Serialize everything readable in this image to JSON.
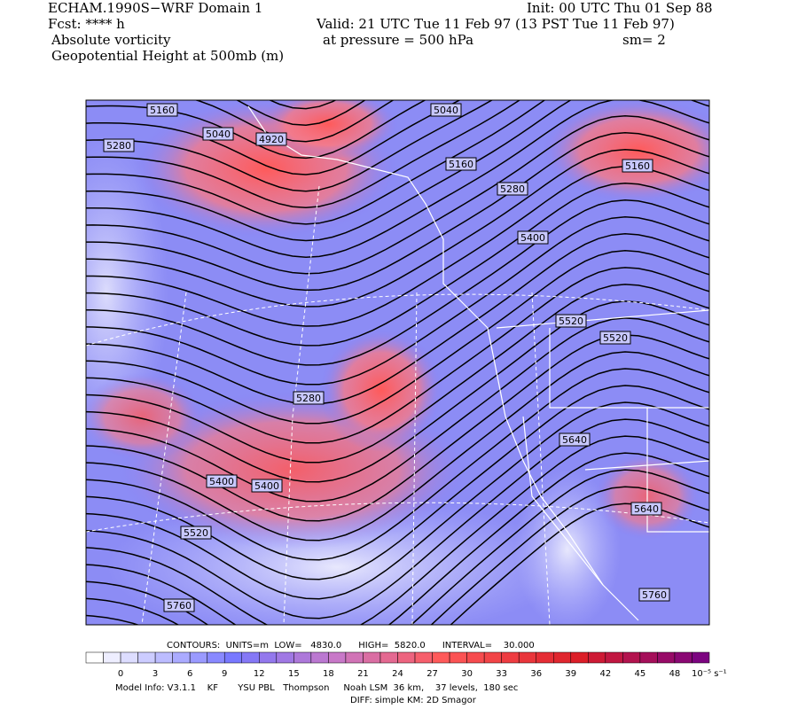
{
  "header": {
    "title": "ECHAM.1990S−WRF Domain 1",
    "init": "Init: 00 UTC Thu 01 Sep 88",
    "fcst": "Fcst: **** h",
    "valid": "Valid: 21 UTC Tue 11 Feb 97 (13 PST Tue 11 Feb 97)",
    "field1": "Absolute vorticity",
    "pressure": "at pressure =  500 hPa",
    "smooth": "sm= 2",
    "field2": "Geopotential Height at 500mb (m)"
  },
  "contour_labels": [
    "5160",
    "5040",
    "4920",
    "5280",
    "5040",
    "5160",
    "5280",
    "5400",
    "5160",
    "5520",
    "5520",
    "5280",
    "5400",
    "5400",
    "5640",
    "5520",
    "5640",
    "5760",
    "5760"
  ],
  "legend": {
    "contours": "CONTOURS:  UNITS=m  LOW=   4830.0      HIGH=  5820.0      INTERVAL=    30.000",
    "ticks": [
      "0",
      "3",
      "6",
      "9",
      "12",
      "15",
      "18",
      "21",
      "24",
      "27",
      "30",
      "33",
      "36",
      "39",
      "42",
      "45",
      "48"
    ],
    "units": "10⁻⁵ s⁻¹"
  },
  "footer": {
    "model": "Model Info: V3.1.1    KF       YSU PBL   Thompson     Noah LSM  36 km,    37 levels,  180 sec",
    "diff": "DIFF: simple KM: 2D Smagor"
  }
}
